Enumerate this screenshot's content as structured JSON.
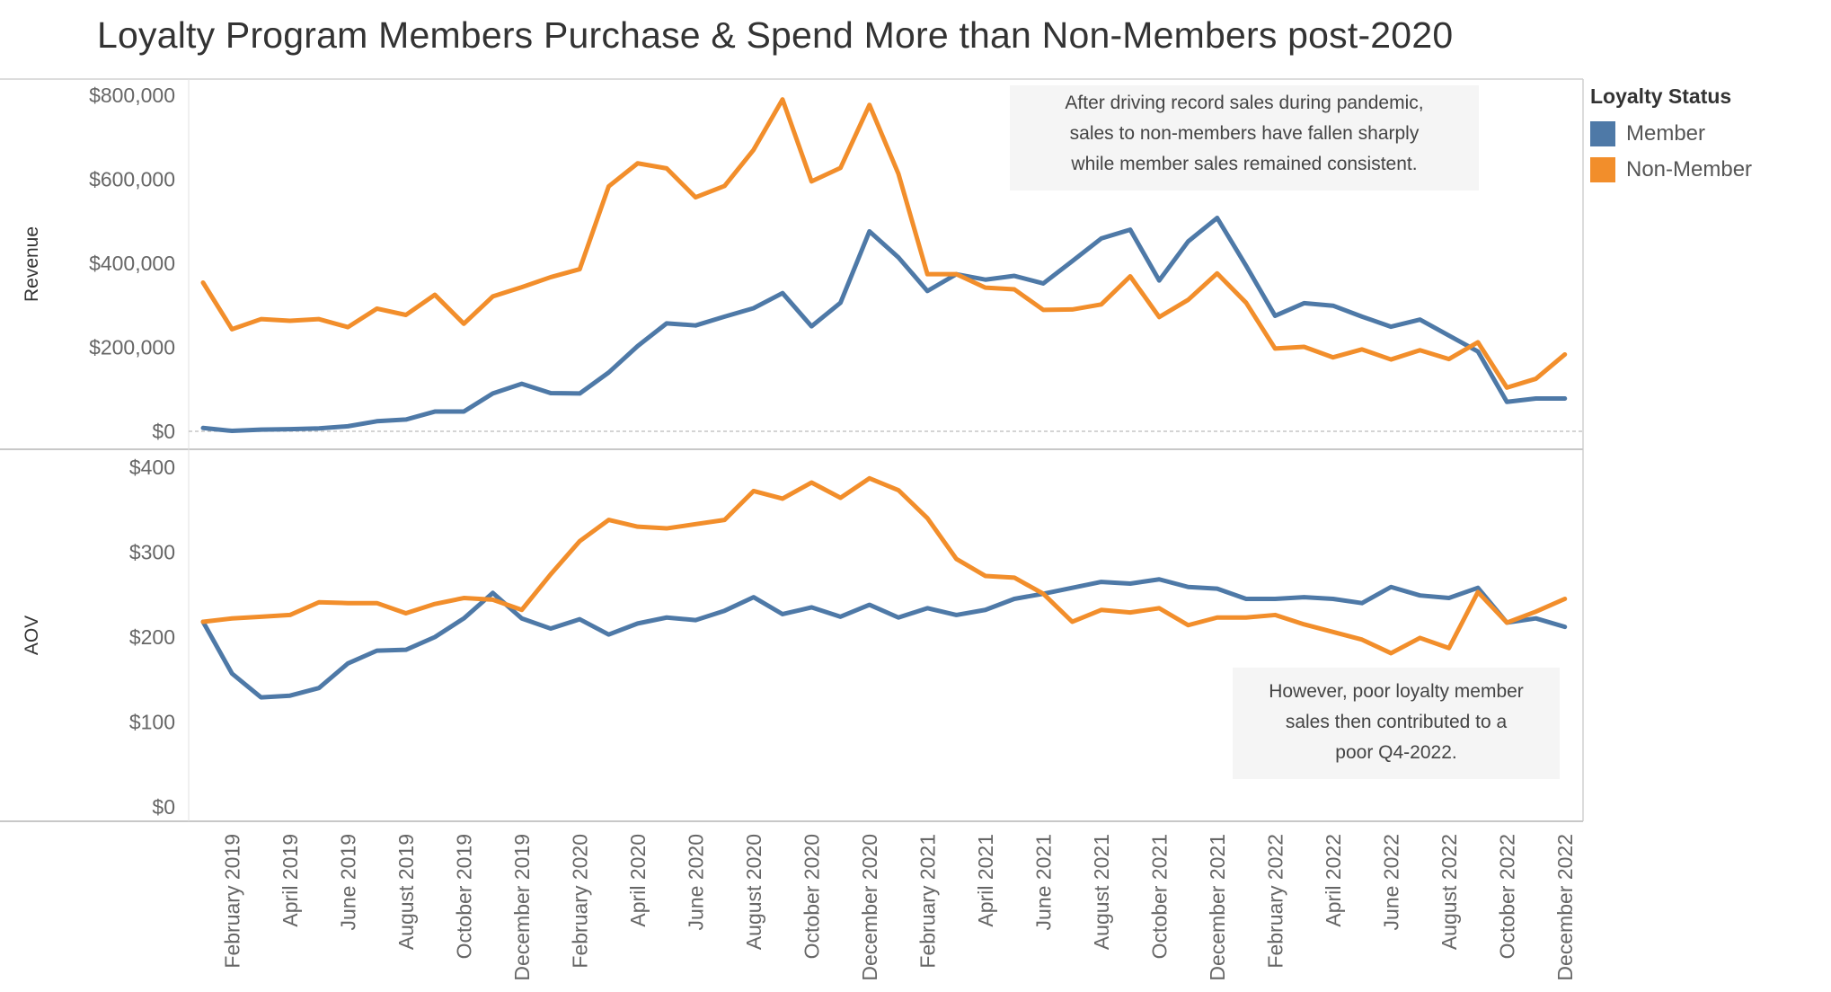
{
  "title": "Loyalty Program Members Purchase & Spend More than Non-Members post-2020",
  "legend": {
    "title": "Loyalty Status",
    "items": [
      {
        "label": "Member",
        "color": "#4e79a7"
      },
      {
        "label": "Non-Member",
        "color": "#f28e2b"
      }
    ]
  },
  "annotations": {
    "top": "After driving record sales during pandemic,\nsales to non-members have fallen sharply\nwhile member sales remained consistent.",
    "bottom": "However, poor loyalty member\nsales then contributed to a\npoor Q4-2022."
  },
  "chart_data": [
    {
      "type": "line",
      "ylabel": "Revenue",
      "ylim": [
        0,
        800000
      ],
      "yticks": [
        0,
        200000,
        400000,
        600000,
        800000
      ],
      "ytick_labels": [
        "$0",
        "$200,000",
        "$400,000",
        "$600,000",
        "$800,000"
      ],
      "x": [
        "January 2019",
        "February 2019",
        "March 2019",
        "April 2019",
        "May 2019",
        "June 2019",
        "July 2019",
        "August 2019",
        "September 2019",
        "October 2019",
        "November 2019",
        "December 2019",
        "January 2020",
        "February 2020",
        "March 2020",
        "April 2020",
        "May 2020",
        "June 2020",
        "July 2020",
        "August 2020",
        "September 2020",
        "October 2020",
        "November 2020",
        "December 2020",
        "January 2021",
        "February 2021",
        "March 2021",
        "April 2021",
        "May 2021",
        "June 2021",
        "July 2021",
        "August 2021",
        "September 2021",
        "October 2021",
        "November 2021",
        "December 2021",
        "January 2022",
        "February 2022",
        "March 2022",
        "April 2022",
        "May 2022",
        "June 2022",
        "July 2022",
        "August 2022",
        "September 2022",
        "October 2022",
        "November 2022",
        "December 2022"
      ],
      "series": [
        {
          "name": "Member",
          "color": "#4e79a7",
          "values": [
            8000,
            1000,
            4000,
            5000,
            7000,
            12000,
            24000,
            28000,
            47000,
            47000,
            90000,
            113000,
            91000,
            90000,
            140000,
            203000,
            257000,
            252000,
            273000,
            293000,
            329000,
            250000,
            306000,
            476000,
            414000,
            334000,
            374000,
            361000,
            370000,
            352000,
            405000,
            459000,
            480000,
            359000,
            452000,
            508000,
            394000,
            275000,
            305000,
            299000,
            273000,
            249000,
            266000,
            228000,
            190000,
            70000,
            78000,
            78000
          ]
        },
        {
          "name": "Non-Member",
          "color": "#f28e2b",
          "values": [
            354000,
            243000,
            267000,
            263000,
            267000,
            248000,
            292000,
            277000,
            325000,
            256000,
            321000,
            343000,
            367000,
            386000,
            583000,
            638000,
            626000,
            557000,
            584000,
            670000,
            790000,
            595000,
            627000,
            777000,
            613000,
            374000,
            374000,
            342000,
            338000,
            289000,
            290000,
            302000,
            369000,
            272000,
            313000,
            376000,
            306000,
            197000,
            201000,
            176000,
            195000,
            171000,
            193000,
            172000,
            212000,
            104000,
            125000,
            183000
          ]
        }
      ]
    },
    {
      "type": "line",
      "ylabel": "AOV",
      "ylim": [
        0,
        400
      ],
      "yticks": [
        0,
        100,
        200,
        300,
        400
      ],
      "ytick_labels": [
        "$0",
        "$100",
        "$200",
        "$300",
        "$400"
      ],
      "x": [
        "January 2019",
        "February 2019",
        "March 2019",
        "April 2019",
        "May 2019",
        "June 2019",
        "July 2019",
        "August 2019",
        "September 2019",
        "October 2019",
        "November 2019",
        "December 2019",
        "January 2020",
        "February 2020",
        "March 2020",
        "April 2020",
        "May 2020",
        "June 2020",
        "July 2020",
        "August 2020",
        "September 2020",
        "October 2020",
        "November 2020",
        "December 2020",
        "January 2021",
        "February 2021",
        "March 2021",
        "April 2021",
        "May 2021",
        "June 2021",
        "July 2021",
        "August 2021",
        "September 2021",
        "October 2021",
        "November 2021",
        "December 2021",
        "January 2022",
        "February 2022",
        "March 2022",
        "April 2022",
        "May 2022",
        "June 2022",
        "July 2022",
        "August 2022",
        "September 2022",
        "October 2022",
        "November 2022",
        "December 2022"
      ],
      "series": [
        {
          "name": "Member",
          "color": "#4e79a7",
          "values": [
            218,
            157,
            129,
            131,
            140,
            169,
            184,
            185,
            200,
            222,
            252,
            222,
            210,
            221,
            203,
            216,
            223,
            220,
            231,
            247,
            227,
            235,
            224,
            238,
            223,
            234,
            226,
            232,
            245,
            251,
            258,
            265,
            263,
            268,
            259,
            257,
            245,
            245,
            247,
            245,
            240,
            259,
            249,
            246,
            258,
            217,
            222,
            212
          ]
        },
        {
          "name": "Non-Member",
          "color": "#f28e2b",
          "values": [
            218,
            222,
            224,
            226,
            241,
            240,
            240,
            228,
            239,
            246,
            244,
            232,
            274,
            313,
            338,
            330,
            328,
            333,
            338,
            372,
            363,
            382,
            364,
            387,
            373,
            340,
            292,
            272,
            270,
            251,
            218,
            232,
            229,
            234,
            214,
            223,
            223,
            226,
            215,
            206,
            197,
            181,
            199,
            187,
            253,
            217,
            230,
            245
          ]
        }
      ]
    }
  ],
  "x_tick_labels": [
    "February 2019",
    "April 2019",
    "June 2019",
    "August 2019",
    "October 2019",
    "December 2019",
    "February 2020",
    "April 2020",
    "June 2020",
    "August 2020",
    "October 2020",
    "December 2020",
    "February 2021",
    "April 2021",
    "June 2021",
    "August 2021",
    "October 2021",
    "December 2021",
    "February 2022",
    "April 2022",
    "June 2022",
    "August 2022",
    "October 2022",
    "December 2022"
  ]
}
